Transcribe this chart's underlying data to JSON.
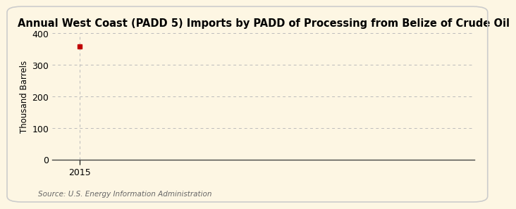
{
  "title": "Annual West Coast (PADD 5) Imports by PADD of Processing from Belize of Crude Oil",
  "ylabel": "Thousand Barrels",
  "source_text": "Source: U.S. Energy Information Administration",
  "data_x": [
    2015
  ],
  "data_y": [
    358
  ],
  "marker_color": "#c00000",
  "marker_size": 4,
  "xlim": [
    2014.4,
    2023.6
  ],
  "ylim": [
    0,
    400
  ],
  "yticks": [
    0,
    100,
    200,
    300,
    400
  ],
  "xticks": [
    2015
  ],
  "background_color": "#fdf6e3",
  "plot_bg_color": "#fdf6e3",
  "grid_color": "#bbbbbb",
  "border_color": "#cccccc",
  "title_fontsize": 10.5,
  "axis_fontsize": 8.5,
  "tick_fontsize": 9,
  "source_fontsize": 7.5,
  "source_color": "#666666"
}
